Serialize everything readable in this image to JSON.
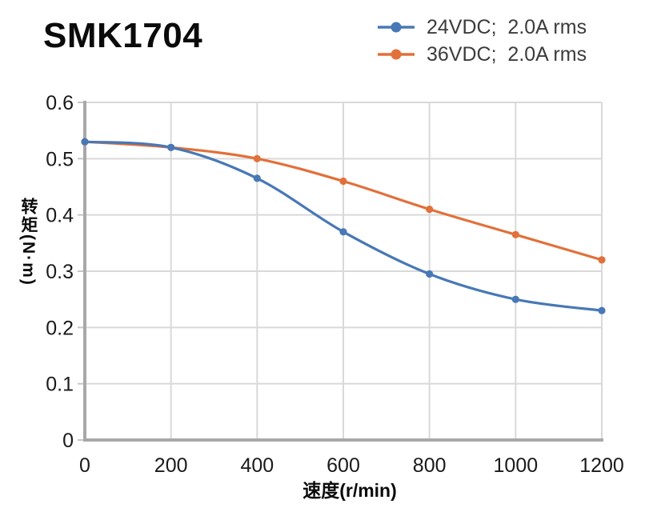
{
  "title": "SMK1704",
  "legend": {
    "position": "top-right",
    "items": [
      {
        "label": "24VDC;  2.0A rms",
        "color": "#4878B6"
      },
      {
        "label": "36VDC;  2.0A rms",
        "color": "#E2703A"
      }
    ]
  },
  "chart_data": {
    "type": "line",
    "title": "SMK1704",
    "x": [
      0,
      200,
      400,
      600,
      800,
      1000,
      1200
    ],
    "series": [
      {
        "name": "24VDC;  2.0A rms",
        "color": "#4878B6",
        "values": [
          0.53,
          0.52,
          0.465,
          0.37,
          0.295,
          0.25,
          0.23
        ]
      },
      {
        "name": "36VDC;  2.0A rms",
        "color": "#E2703A",
        "values": [
          0.53,
          0.52,
          0.5,
          0.46,
          0.41,
          0.365,
          0.32
        ]
      }
    ],
    "xlabel": "速度(r/min)",
    "ylabel": "转矩(N·m)",
    "xlim": [
      0,
      1200
    ],
    "ylim": [
      0,
      0.6
    ],
    "xticks": [
      0,
      200,
      400,
      600,
      800,
      1000,
      1200
    ],
    "yticks": [
      0,
      0.1,
      0.2,
      0.3,
      0.4,
      0.5,
      0.6
    ],
    "grid": true,
    "marker": "circle",
    "line_smoothing": true,
    "colors": {
      "gridline": "#D9D9D9",
      "axis": "#A8A8A8",
      "tick_stub": "#C6C6C6",
      "tick_label": "#1A1A1A",
      "legend_text": "#3C3C3C",
      "title_text": "#0B0B0B"
    }
  }
}
